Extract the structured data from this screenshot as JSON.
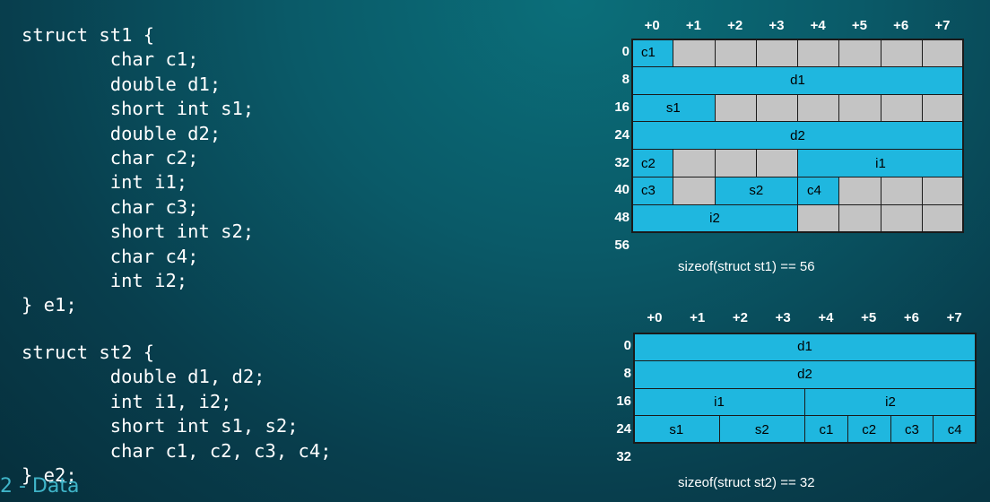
{
  "code": {
    "struct1": [
      "struct st1 {",
      "        char c1;",
      "        double d1;",
      "        short int s1;",
      "        double d2;",
      "        char c2;",
      "        int i1;",
      "        char c3;",
      "        short int s2;",
      "        char c4;",
      "        int i2;",
      "} e1;"
    ],
    "struct2": [
      "struct st2 {",
      "        double d1, d2;",
      "        int i1, i2;",
      "        short int s1, s2;",
      "        char c1, c2, c3, c4;",
      "} e2;"
    ]
  },
  "footer": {
    "text": "2 - Data"
  },
  "colors": {
    "field": "#1fb7df",
    "padding": "#c4c4c4",
    "border": "#1a1a1a"
  },
  "layouts": [
    {
      "name": "st1",
      "column_headers": [
        "+0",
        "+1",
        "+2",
        "+3",
        "+4",
        "+5",
        "+6",
        "+7"
      ],
      "row_labels": [
        "0",
        "8",
        "16",
        "24",
        "32",
        "40",
        "48",
        "56"
      ],
      "caption": "sizeof(struct st1) == 56",
      "rows": [
        [
          {
            "label": "c1",
            "span": 1,
            "kind": "field",
            "align": "left"
          },
          {
            "label": "",
            "span": 1,
            "kind": "padding"
          },
          {
            "label": "",
            "span": 1,
            "kind": "padding"
          },
          {
            "label": "",
            "span": 1,
            "kind": "padding"
          },
          {
            "label": "",
            "span": 1,
            "kind": "padding"
          },
          {
            "label": "",
            "span": 1,
            "kind": "padding"
          },
          {
            "label": "",
            "span": 1,
            "kind": "padding"
          },
          {
            "label": "",
            "span": 1,
            "kind": "padding"
          }
        ],
        [
          {
            "label": "d1",
            "span": 8,
            "kind": "field"
          }
        ],
        [
          {
            "label": "s1",
            "span": 2,
            "kind": "field"
          },
          {
            "label": "",
            "span": 1,
            "kind": "padding"
          },
          {
            "label": "",
            "span": 1,
            "kind": "padding"
          },
          {
            "label": "",
            "span": 1,
            "kind": "padding"
          },
          {
            "label": "",
            "span": 1,
            "kind": "padding"
          },
          {
            "label": "",
            "span": 1,
            "kind": "padding"
          },
          {
            "label": "",
            "span": 1,
            "kind": "padding"
          }
        ],
        [
          {
            "label": "d2",
            "span": 8,
            "kind": "field"
          }
        ],
        [
          {
            "label": "c2",
            "span": 1,
            "kind": "field",
            "align": "left"
          },
          {
            "label": "",
            "span": 1,
            "kind": "padding"
          },
          {
            "label": "",
            "span": 1,
            "kind": "padding"
          },
          {
            "label": "",
            "span": 1,
            "kind": "padding"
          },
          {
            "label": "i1",
            "span": 4,
            "kind": "field"
          }
        ],
        [
          {
            "label": "c3",
            "span": 1,
            "kind": "field",
            "align": "left"
          },
          {
            "label": "",
            "span": 1,
            "kind": "padding"
          },
          {
            "label": "s2",
            "span": 2,
            "kind": "field"
          },
          {
            "label": "c4",
            "span": 1,
            "kind": "field",
            "align": "left"
          },
          {
            "label": "",
            "span": 1,
            "kind": "padding"
          },
          {
            "label": "",
            "span": 1,
            "kind": "padding"
          },
          {
            "label": "",
            "span": 1,
            "kind": "padding"
          }
        ],
        [
          {
            "label": "i2",
            "span": 4,
            "kind": "field"
          },
          {
            "label": "",
            "span": 1,
            "kind": "padding"
          },
          {
            "label": "",
            "span": 1,
            "kind": "padding"
          },
          {
            "label": "",
            "span": 1,
            "kind": "padding"
          },
          {
            "label": "",
            "span": 1,
            "kind": "padding"
          }
        ]
      ]
    },
    {
      "name": "st2",
      "column_headers": [
        "+0",
        "+1",
        "+2",
        "+3",
        "+4",
        "+5",
        "+6",
        "+7"
      ],
      "row_labels": [
        "0",
        "8",
        "16",
        "24",
        "32"
      ],
      "caption": "sizeof(struct st2) == 32",
      "rows": [
        [
          {
            "label": "d1",
            "span": 8,
            "kind": "field"
          }
        ],
        [
          {
            "label": "d2",
            "span": 8,
            "kind": "field"
          }
        ],
        [
          {
            "label": "i1",
            "span": 4,
            "kind": "field"
          },
          {
            "label": "i2",
            "span": 4,
            "kind": "field"
          }
        ],
        [
          {
            "label": "s1",
            "span": 2,
            "kind": "field"
          },
          {
            "label": "s2",
            "span": 2,
            "kind": "field"
          },
          {
            "label": "c1",
            "span": 1,
            "kind": "field"
          },
          {
            "label": "c2",
            "span": 1,
            "kind": "field"
          },
          {
            "label": "c3",
            "span": 1,
            "kind": "field"
          },
          {
            "label": "c4",
            "span": 1,
            "kind": "field"
          }
        ]
      ]
    }
  ]
}
